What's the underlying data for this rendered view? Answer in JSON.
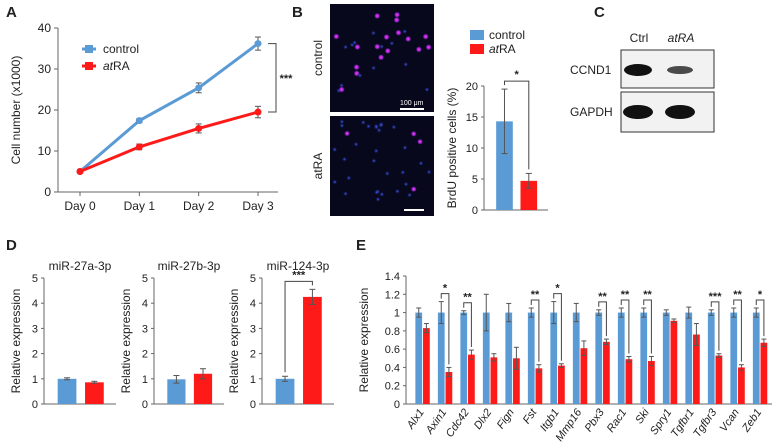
{
  "colors": {
    "control": "#5b9bd5",
    "treated": "#ff1a1a",
    "axis": "#555555"
  },
  "panels": {
    "a": "A",
    "b": "B",
    "c": "C",
    "d": "D",
    "e": "E"
  },
  "legend": {
    "control": "control",
    "treated_prefix": "at",
    "treated_suffix": "RA"
  },
  "chart_data": [
    {
      "id": "A",
      "type": "line",
      "ylabel": "Cell number (x1000)",
      "categories": [
        "Day 0",
        "Day 1",
        "Day 2",
        "Day 3"
      ],
      "ylim": [
        0,
        40
      ],
      "yticks": [
        0,
        10,
        20,
        30,
        40
      ],
      "series": [
        {
          "name": "control",
          "values": [
            5,
            17.4,
            25.4,
            36.2
          ],
          "errors": [
            0.3,
            0.5,
            1.2,
            1.6
          ]
        },
        {
          "name": "atRA",
          "values": [
            5,
            11,
            15.5,
            19.5
          ],
          "errors": [
            0.3,
            0.7,
            1.1,
            1.4
          ]
        }
      ],
      "significance": "***"
    },
    {
      "id": "B",
      "type": "bar",
      "ylabel": "BrdU positive cells (%)",
      "categories": [
        "control",
        "atRA"
      ],
      "values": [
        14.3,
        4.7
      ],
      "errors": [
        5.2,
        1.2
      ],
      "ylim": [
        0,
        20
      ],
      "yticks": [
        0,
        5,
        10,
        15,
        20
      ],
      "significance": "*"
    },
    {
      "id": "D1",
      "type": "bar",
      "title": "miR-27a-3p",
      "ylabel": "Relative expression",
      "categories": [
        "control",
        "atRA"
      ],
      "values": [
        1.0,
        0.86
      ],
      "errors": [
        0.04,
        0.04
      ],
      "ylim": [
        0,
        5
      ],
      "yticks": [
        0,
        1,
        2,
        3,
        4,
        5
      ]
    },
    {
      "id": "D2",
      "type": "bar",
      "title": "miR-27b-3p",
      "ylabel": "Relative expression",
      "categories": [
        "control",
        "atRA"
      ],
      "values": [
        0.98,
        1.2
      ],
      "errors": [
        0.15,
        0.2
      ],
      "ylim": [
        0,
        5
      ],
      "yticks": [
        0,
        1,
        2,
        3,
        4,
        5
      ]
    },
    {
      "id": "D3",
      "type": "bar",
      "title": "miR-124-3p",
      "ylabel": "Relative expression",
      "categories": [
        "control",
        "atRA"
      ],
      "values": [
        1.0,
        4.25
      ],
      "errors": [
        0.1,
        0.3
      ],
      "ylim": [
        0,
        5
      ],
      "yticks": [
        0,
        1,
        2,
        3,
        4,
        5
      ],
      "significance": "***"
    },
    {
      "id": "E",
      "type": "bar",
      "ylabel": "Relative expression",
      "ylim": [
        0,
        1.4
      ],
      "yticks": [
        0,
        0.2,
        0.4,
        0.6,
        0.8,
        1,
        1.2,
        1.4
      ],
      "categories": [
        "Alx1",
        "Axin1",
        "Cdc42",
        "Dlx2",
        "Fign",
        "Fst",
        "Itgb1",
        "Mmp16",
        "Pbx3",
        "Rac1",
        "Ski",
        "Spry1",
        "Tgfbr1",
        "Tgfbr3",
        "Vcan",
        "Zeb1"
      ],
      "series": [
        {
          "name": "control",
          "values": [
            1,
            1,
            1,
            1,
            1,
            1,
            1,
            1,
            1,
            1,
            1,
            1,
            1,
            1,
            1,
            1
          ],
          "errors": [
            0.05,
            0.12,
            0.02,
            0.2,
            0.1,
            0.05,
            0.12,
            0.1,
            0.03,
            0.05,
            0.05,
            0.03,
            0.06,
            0.03,
            0.05,
            0.05
          ]
        },
        {
          "name": "atRA",
          "values": [
            0.83,
            0.35,
            0.54,
            0.51,
            0.5,
            0.39,
            0.42,
            0.61,
            0.68,
            0.49,
            0.47,
            0.91,
            0.76,
            0.53,
            0.4,
            0.67
          ],
          "errors": [
            0.05,
            0.05,
            0.05,
            0.04,
            0.12,
            0.04,
            0.02,
            0.08,
            0.03,
            0.03,
            0.05,
            0.02,
            0.12,
            0.02,
            0.03,
            0.04
          ]
        }
      ],
      "significance": [
        "",
        "*",
        "**",
        "",
        "",
        "**",
        "*",
        "",
        "**",
        "**",
        "**",
        "",
        "",
        "***",
        "**",
        "*"
      ]
    }
  ],
  "images": {
    "row_labels": [
      "control",
      "atRA"
    ],
    "scale_label": "100 μm",
    "blot_header_ctrl": "Ctrl",
    "blot_header_atra": "atRA",
    "blot_rows": [
      "CCND1",
      "GAPDH"
    ]
  }
}
